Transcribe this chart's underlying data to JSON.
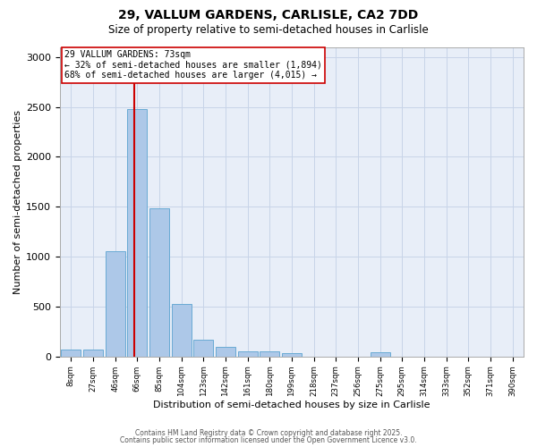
{
  "title_line1": "29, VALLUM GARDENS, CARLISLE, CA2 7DD",
  "title_line2": "Size of property relative to semi-detached houses in Carlisle",
  "xlabel": "Distribution of semi-detached houses by size in Carlisle",
  "ylabel": "Number of semi-detached properties",
  "bin_labels": [
    "8sqm",
    "27sqm",
    "46sqm",
    "66sqm",
    "85sqm",
    "104sqm",
    "123sqm",
    "142sqm",
    "161sqm",
    "180sqm",
    "199sqm",
    "218sqm",
    "237sqm",
    "256sqm",
    "275sqm",
    "295sqm",
    "314sqm",
    "333sqm",
    "352sqm",
    "371sqm",
    "390sqm"
  ],
  "bar_heights": [
    70,
    70,
    1050,
    2480,
    1480,
    530,
    165,
    100,
    55,
    50,
    30,
    0,
    0,
    0,
    40,
    0,
    0,
    0,
    0,
    0,
    0
  ],
  "bar_color": "#adc8e8",
  "bar_edgecolor": "#6aaad4",
  "property_bin_index": 3,
  "red_line_color": "#cc0000",
  "annotation_title": "29 VALLUM GARDENS: 73sqm",
  "annotation_line2": "← 32% of semi-detached houses are smaller (1,894)",
  "annotation_line3": "68% of semi-detached houses are larger (4,015) →",
  "annotation_box_color": "#ffffff",
  "annotation_box_edgecolor": "#cc0000",
  "ylim": [
    0,
    3100
  ],
  "yticks": [
    0,
    500,
    1000,
    1500,
    2000,
    2500,
    3000
  ],
  "grid_color": "#c8d4e8",
  "bg_color": "#e8eef8",
  "footer1": "Contains HM Land Registry data © Crown copyright and database right 2025.",
  "footer2": "Contains public sector information licensed under the Open Government Licence v3.0."
}
